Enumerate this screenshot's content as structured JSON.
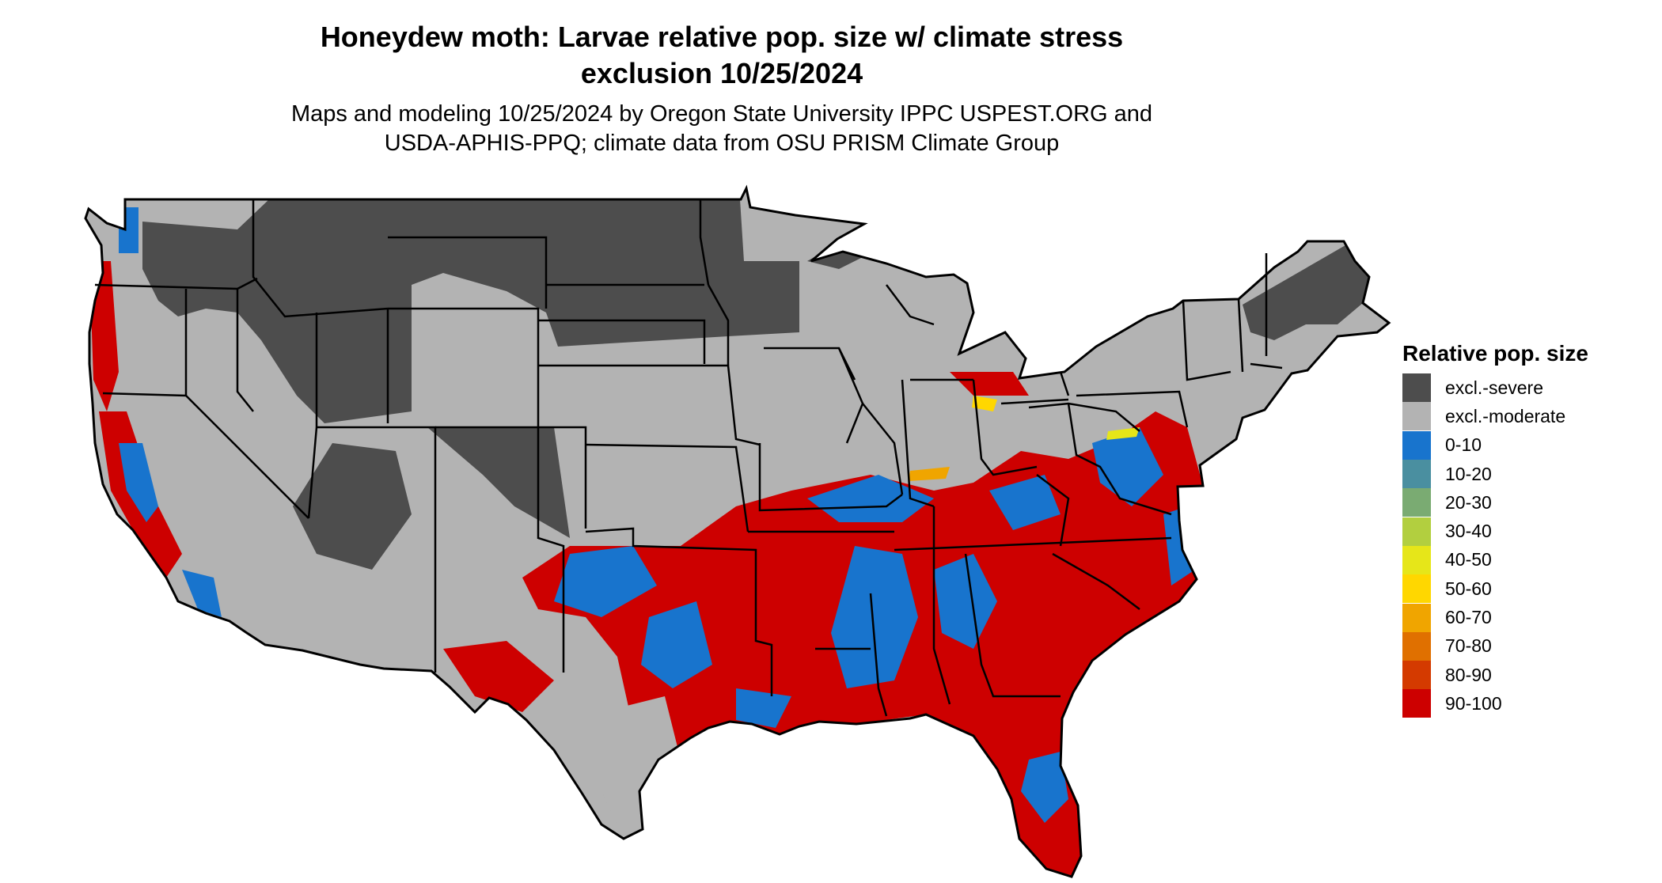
{
  "title_line1": "Honeydew moth: Larvae relative pop. size w/ climate stress",
  "title_line2": "exclusion 10/25/2024",
  "subtitle_line1": "Maps and modeling 10/25/2024 by Oregon State University IPPC USPEST.ORG and",
  "subtitle_line2": "USDA-APHIS-PPQ; climate data from OSU PRISM Climate Group",
  "legend": {
    "title": "Relative pop. size",
    "items": [
      {
        "label": "excl.-severe",
        "color": "#4d4d4d"
      },
      {
        "label": "excl.-moderate",
        "color": "#b3b3b3"
      },
      {
        "label": "0-10",
        "color": "#1874cd"
      },
      {
        "label": "10-20",
        "color": "#4a8fa0"
      },
      {
        "label": "20-30",
        "color": "#7aab72"
      },
      {
        "label": "30-40",
        "color": "#b2cf3f"
      },
      {
        "label": "40-50",
        "color": "#e6e619"
      },
      {
        "label": "50-60",
        "color": "#ffd700"
      },
      {
        "label": "60-70",
        "color": "#f0a500"
      },
      {
        "label": "70-80",
        "color": "#e07000"
      },
      {
        "label": "80-90",
        "color": "#d43a00"
      },
      {
        "label": "90-100",
        "color": "#cd0000"
      }
    ]
  }
}
